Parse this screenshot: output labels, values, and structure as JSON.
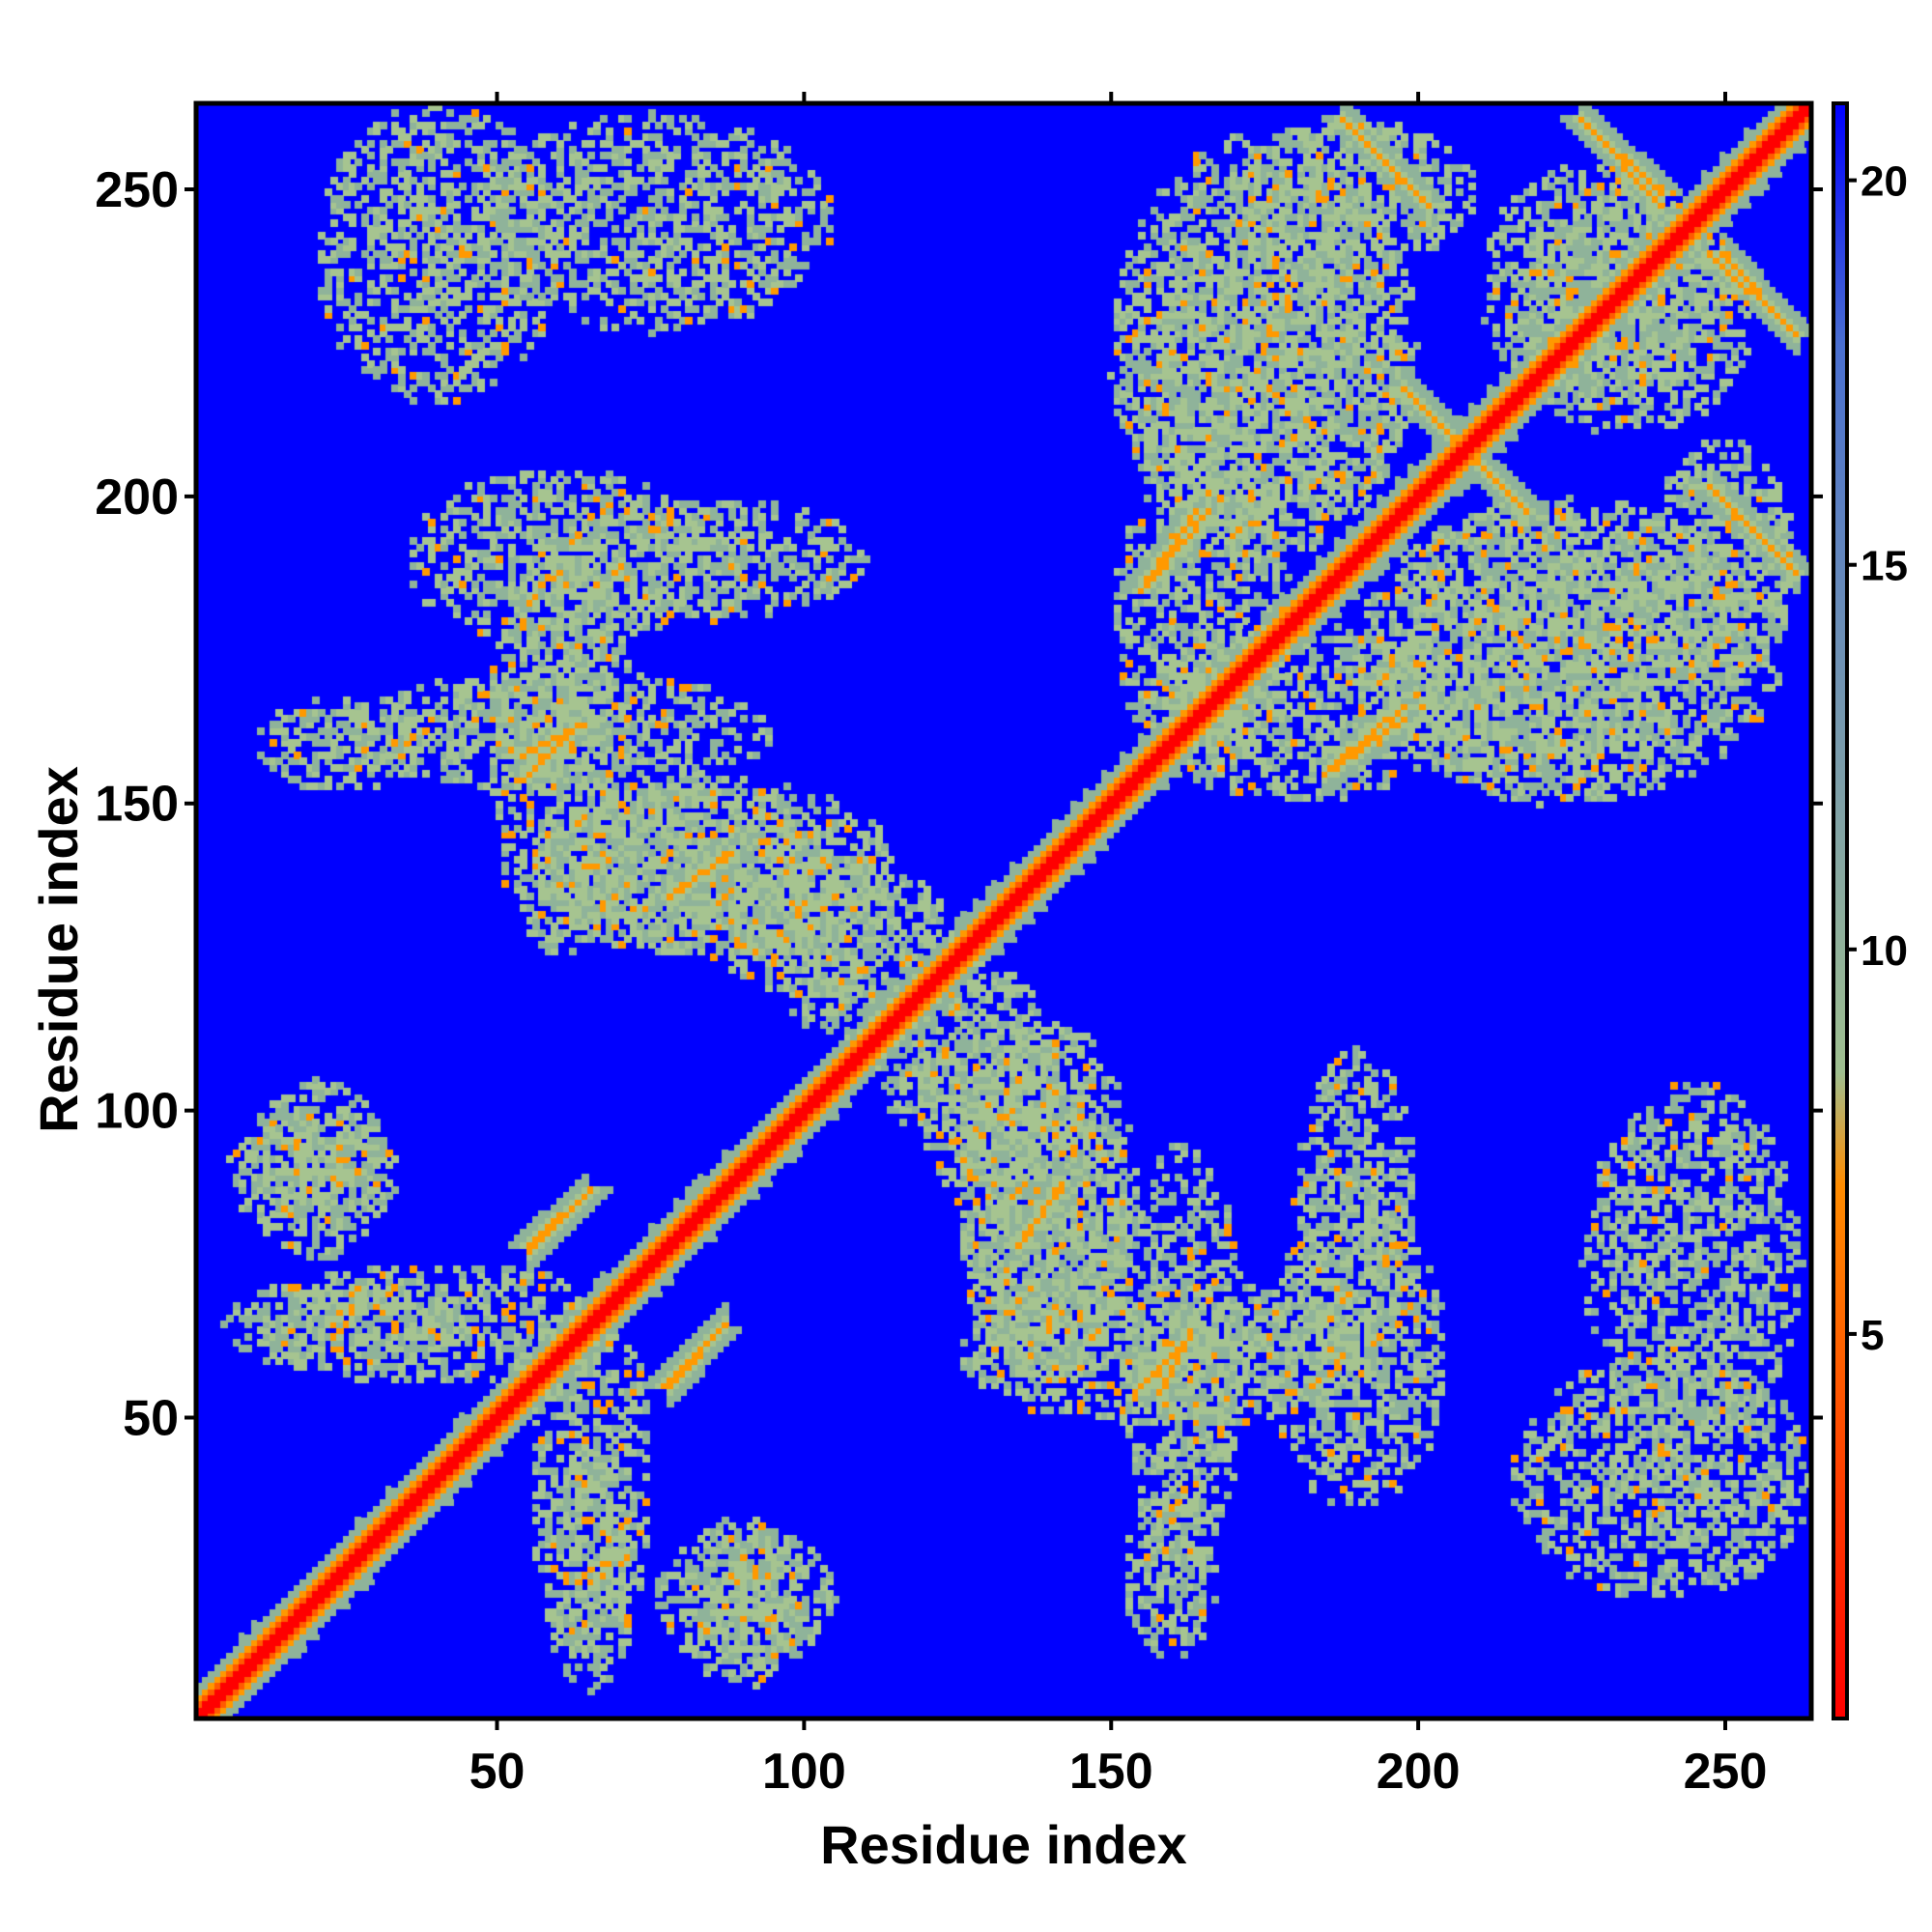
{
  "chart_data": {
    "type": "heatmap",
    "title": "",
    "xlabel": "Residue index",
    "ylabel": "Residue index",
    "n_residues": 264,
    "xlim": [
      1,
      264
    ],
    "ylim": [
      1,
      264
    ],
    "x_ticks": [
      50,
      100,
      150,
      200,
      250
    ],
    "y_ticks": [
      50,
      100,
      150,
      200,
      250
    ],
    "colorbar": {
      "ticks": [
        5,
        10,
        15,
        20
      ],
      "range": [
        0,
        21
      ],
      "colors": [
        "#ff0000",
        "#ff8c00",
        "#9fbf8f",
        "#4a6fd0",
        "#0000ff"
      ],
      "threshold_colors": [
        {
          "max": 2.5,
          "color": "#ff0000"
        },
        {
          "max": 4.5,
          "color": "#ff5a00"
        },
        {
          "max": 8,
          "color": "#ff9900"
        },
        {
          "max": 11,
          "color": "#a6c490"
        },
        {
          "max": 14.5,
          "color": "#8fb39a"
        },
        {
          "max": 21,
          "color": "#0000ff"
        }
      ]
    },
    "background_value": 21,
    "diagonal_band_width": 6,
    "contact_segments": [
      {
        "x1": 55,
        "y1": 78,
        "x2": 65,
        "y2": 87,
        "orientation": "parallel"
      },
      {
        "x1": 77,
        "y1": 55,
        "x2": 86,
        "y2": 64,
        "orientation": "parallel"
      },
      {
        "x1": 54,
        "y1": 158,
        "x2": 63,
        "y2": 163,
        "orientation": "parallel"
      },
      {
        "x1": 78,
        "y1": 135,
        "x2": 88,
        "y2": 142,
        "orientation": "parallel"
      },
      {
        "x1": 135,
        "y1": 78,
        "x2": 142,
        "y2": 88,
        "orientation": "parallel"
      },
      {
        "x1": 155,
        "y1": 55,
        "x2": 163,
        "y2": 63,
        "orientation": "parallel"
      },
      {
        "x1": 155,
        "y1": 185,
        "x2": 164,
        "y2": 198,
        "orientation": "parallel"
      },
      {
        "x1": 187,
        "y1": 157,
        "x2": 198,
        "y2": 166,
        "orientation": "parallel"
      },
      {
        "x1": 188,
        "y1": 262,
        "x2": 202,
        "y2": 248,
        "orientation": "anti"
      },
      {
        "x1": 227,
        "y1": 262,
        "x2": 240,
        "y2": 250,
        "orientation": "anti"
      },
      {
        "x1": 248,
        "y1": 240,
        "x2": 262,
        "y2": 227,
        "orientation": "anti"
      },
      {
        "x1": 248,
        "y1": 202,
        "x2": 262,
        "y2": 188,
        "orientation": "anti"
      },
      {
        "x1": 198,
        "y1": 218,
        "x2": 206,
        "y2": 210,
        "orientation": "anti"
      },
      {
        "x1": 210,
        "y1": 206,
        "x2": 218,
        "y2": 198,
        "orientation": "anti"
      }
    ],
    "contact_regions": [
      {
        "cx": 75,
        "cy": 245,
        "rx": 30,
        "ry": 18
      },
      {
        "cx": 85,
        "cy": 190,
        "rx": 25,
        "ry": 10
      },
      {
        "cx": 60,
        "cy": 162,
        "rx": 35,
        "ry": 10
      },
      {
        "cx": 85,
        "cy": 140,
        "rx": 30,
        "ry": 15
      },
      {
        "cx": 20,
        "cy": 90,
        "rx": 15,
        "ry": 10
      },
      {
        "cx": 40,
        "cy": 65,
        "rx": 30,
        "ry": 10
      },
      {
        "cx": 90,
        "cy": 20,
        "rx": 15,
        "ry": 12
      },
      {
        "cx": 65,
        "cy": 25,
        "rx": 8,
        "ry": 20
      },
      {
        "cx": 140,
        "cy": 80,
        "rx": 15,
        "ry": 25
      },
      {
        "cx": 160,
        "cy": 60,
        "rx": 35,
        "ry": 12
      },
      {
        "cx": 190,
        "cy": 60,
        "rx": 15,
        "ry": 25
      },
      {
        "cx": 240,
        "cy": 40,
        "rx": 25,
        "ry": 20
      },
      {
        "cx": 160,
        "cy": 25,
        "rx": 8,
        "ry": 15
      },
      {
        "cx": 175,
        "cy": 225,
        "rx": 25,
        "ry": 35
      },
      {
        "cx": 220,
        "cy": 175,
        "rx": 25,
        "ry": 25
      },
      {
        "cx": 230,
        "cy": 235,
        "rx": 20,
        "ry": 20
      },
      {
        "cx": 250,
        "cy": 190,
        "rx": 12,
        "ry": 20
      },
      {
        "cx": 180,
        "cy": 165,
        "rx": 25,
        "ry": 15
      },
      {
        "cx": 125,
        "cy": 110,
        "rx": 15,
        "ry": 15
      },
      {
        "cx": 100,
        "cy": 130,
        "rx": 15,
        "ry": 12
      }
    ]
  }
}
